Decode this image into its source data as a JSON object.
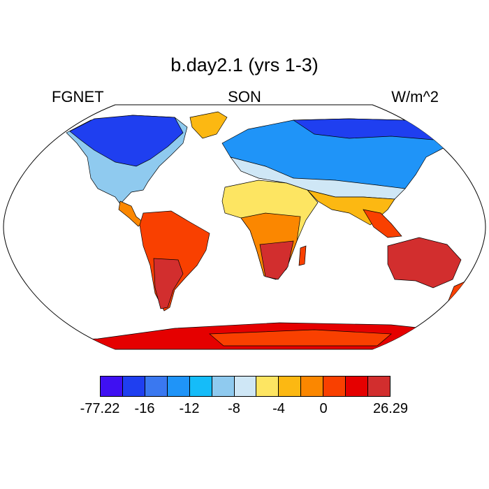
{
  "title": "b.day2.1 (yrs 1-3)",
  "left_string": "FGNET",
  "center_string": "SON",
  "right_string": "W/m^2",
  "colorbar": {
    "colors": [
      "#3f10f2",
      "#1f3ff0",
      "#3a78f0",
      "#1f94f8",
      "#15bcf9",
      "#8fcaef",
      "#cfe7f6",
      "#fde562",
      "#fcb812",
      "#fb8700",
      "#f94000",
      "#e50000",
      "#d22e2e"
    ],
    "labels": [
      "-77.22",
      "-16",
      "-12",
      "-8",
      "-4",
      "0",
      "26.29"
    ]
  },
  "map": {
    "projection": "robinson",
    "variable": "FGNET",
    "season": "SON",
    "units": "W/m^2"
  }
}
